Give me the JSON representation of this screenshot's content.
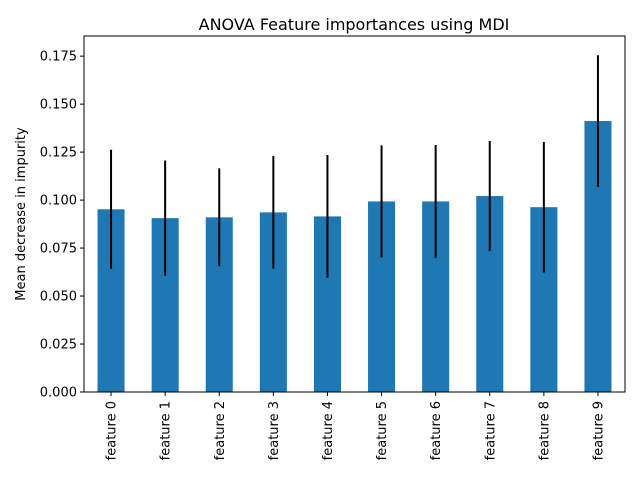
{
  "chart_data": {
    "type": "bar",
    "title": "ANOVA Feature importances using MDI",
    "xlabel": "",
    "ylabel": "Mean decrease in impurity",
    "categories": [
      "feature 0",
      "feature 1",
      "feature 2",
      "feature 3",
      "feature 4",
      "feature 5",
      "feature 6",
      "feature 7",
      "feature 8",
      "feature 9"
    ],
    "values": [
      0.0952,
      0.0906,
      0.091,
      0.0936,
      0.0915,
      0.0993,
      0.0993,
      0.1021,
      0.0963,
      0.1412
    ],
    "errors": [
      0.031,
      0.03,
      0.0255,
      0.0293,
      0.032,
      0.0292,
      0.0294,
      0.0287,
      0.034,
      0.0343
    ],
    "ylim": [
      0,
      0.1855
    ],
    "yticks": [
      "0.000",
      "0.025",
      "0.050",
      "0.075",
      "0.100",
      "0.125",
      "0.150",
      "0.175"
    ],
    "ytick_values": [
      0,
      0.025,
      0.05,
      0.075,
      0.1,
      0.125,
      0.15,
      0.175
    ],
    "grid": false,
    "legend": "none",
    "colors": {
      "bar": "#1f77b4",
      "error": "#000000",
      "axis": "#000000"
    }
  }
}
